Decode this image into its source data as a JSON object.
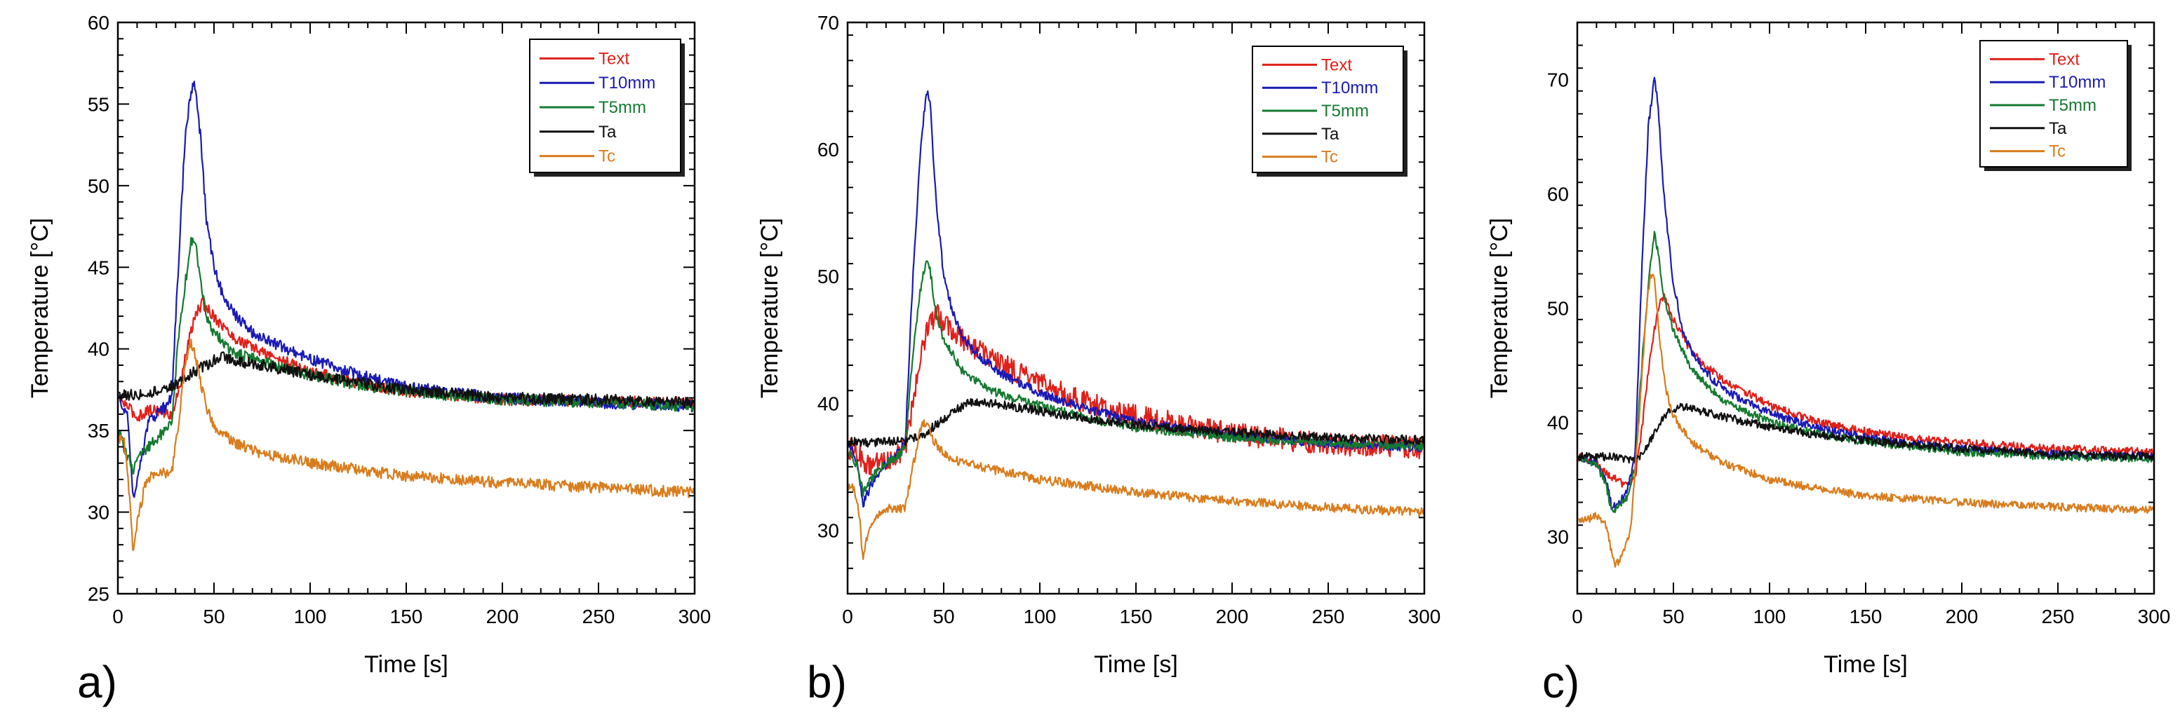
{
  "chart_data": [
    {
      "type": "line",
      "panel_label": "a)",
      "xlabel": "Time [s]",
      "ylabel": "Temperature [°C]",
      "xlim": [
        0,
        300
      ],
      "ylim": [
        25,
        60
      ],
      "xticks": [
        0,
        50,
        100,
        150,
        200,
        250,
        300
      ],
      "yticks": [
        25,
        30,
        35,
        40,
        45,
        50,
        55,
        60
      ],
      "grid": false,
      "legend": "top-right",
      "series": [
        {
          "name": "Text",
          "color": "#e0201a",
          "x": [
            0,
            5,
            10,
            15,
            20,
            25,
            28,
            32,
            36,
            40,
            44,
            50,
            60,
            75,
            100,
            125,
            150,
            200,
            250,
            300
          ],
          "y": [
            37,
            36.5,
            35.8,
            36.2,
            36.3,
            36,
            36,
            37.5,
            40,
            42,
            42.8,
            42,
            40.7,
            39.8,
            38.6,
            37.9,
            37.4,
            36.9,
            36.8,
            36.7
          ]
        },
        {
          "name": "T10mm",
          "color": "#1a1ab4",
          "x": [
            0,
            5,
            8,
            12,
            16,
            20,
            25,
            28,
            31,
            35,
            38,
            40,
            43,
            46,
            50,
            55,
            60,
            70,
            80,
            100,
            125,
            150,
            175,
            200,
            250,
            300
          ],
          "y": [
            37,
            36,
            31,
            33,
            35.5,
            36,
            36.5,
            37,
            44,
            53,
            55.8,
            56.2,
            53,
            48,
            45,
            43.2,
            42.2,
            41,
            40.4,
            39.4,
            38.4,
            37.7,
            37.3,
            37,
            36.7,
            36.5
          ]
        },
        {
          "name": "T5mm",
          "color": "#157a30",
          "x": [
            0,
            5,
            8,
            12,
            16,
            20,
            25,
            28,
            31,
            35,
            38,
            40,
            43,
            46,
            50,
            60,
            75,
            100,
            125,
            150,
            200,
            250,
            300
          ],
          "y": [
            35,
            33.5,
            32.5,
            33.5,
            34,
            34.5,
            35,
            35.5,
            40,
            44,
            46.5,
            46.8,
            44,
            42,
            41,
            39.8,
            39.2,
            38.4,
            37.8,
            37.4,
            36.9,
            36.7,
            36.5
          ]
        },
        {
          "name": "Ta",
          "color": "#111111",
          "x": [
            0,
            10,
            20,
            30,
            40,
            50,
            55,
            60,
            75,
            100,
            125,
            150,
            200,
            250,
            300
          ],
          "y": [
            37.2,
            37.2,
            37.4,
            37.8,
            38.6,
            39.3,
            39.5,
            39.3,
            39,
            38.4,
            37.9,
            37.5,
            37,
            36.9,
            36.7
          ]
        },
        {
          "name": "Tc",
          "color": "#d87d1e",
          "x": [
            0,
            3,
            6,
            8,
            10,
            14,
            18,
            22,
            26,
            28,
            31,
            35,
            38,
            40,
            43,
            46,
            50,
            60,
            75,
            100,
            125,
            150,
            200,
            250,
            300
          ],
          "y": [
            34.5,
            34.7,
            31,
            27.3,
            29.5,
            31.5,
            32.3,
            32.5,
            32.3,
            32.4,
            35,
            39,
            40.3,
            39.7,
            38,
            36.5,
            35.3,
            34.3,
            33.6,
            33,
            32.6,
            32.2,
            31.8,
            31.5,
            31.2
          ]
        }
      ]
    },
    {
      "type": "line",
      "panel_label": "b)",
      "xlabel": "Time [s]",
      "ylabel": "Temperature [°C]",
      "xlim": [
        0,
        300
      ],
      "ylim": [
        25,
        70
      ],
      "xticks": [
        0,
        50,
        100,
        150,
        200,
        250,
        300
      ],
      "yticks": [
        30,
        40,
        50,
        60,
        70
      ],
      "grid": false,
      "legend": "top-right",
      "series": [
        {
          "name": "Text",
          "color": "#e0201a",
          "x": [
            0,
            5,
            10,
            15,
            20,
            25,
            30,
            34,
            38,
            42,
            46,
            50,
            60,
            75,
            100,
            125,
            150,
            175,
            200,
            250,
            300
          ],
          "y": [
            36.5,
            36.2,
            35,
            35.3,
            35.5,
            35.8,
            36.5,
            40,
            44,
            46,
            47,
            46.5,
            45,
            43.5,
            41.5,
            40,
            39,
            38.3,
            37.6,
            36.8,
            36.5
          ]
        },
        {
          "name": "T10mm",
          "color": "#1a1ab4",
          "x": [
            0,
            5,
            8,
            12,
            16,
            20,
            25,
            30,
            34,
            38,
            41,
            43,
            46,
            50,
            55,
            60,
            70,
            80,
            100,
            125,
            150,
            175,
            200,
            250,
            300
          ],
          "y": [
            37,
            35.5,
            32,
            33.5,
            34.5,
            35.2,
            35.8,
            37,
            50,
            60,
            64.8,
            63.5,
            56,
            50,
            47,
            45.2,
            43.5,
            42.3,
            40.8,
            39.5,
            38.6,
            38,
            37.5,
            36.8,
            36.5
          ]
        },
        {
          "name": "T5mm",
          "color": "#157a30",
          "x": [
            0,
            5,
            8,
            12,
            16,
            20,
            25,
            30,
            34,
            38,
            41,
            43,
            46,
            50,
            60,
            75,
            100,
            125,
            150,
            200,
            250,
            300
          ],
          "y": [
            36.5,
            35,
            33,
            34,
            34.8,
            35.3,
            35.7,
            36.5,
            44,
            49,
            51.5,
            50.5,
            47,
            45,
            42.5,
            41,
            39.8,
            38.8,
            38.1,
            37.3,
            36.9,
            36.6
          ]
        },
        {
          "name": "Ta",
          "color": "#111111",
          "x": [
            0,
            10,
            20,
            30,
            40,
            50,
            60,
            65,
            75,
            100,
            125,
            150,
            200,
            250,
            300
          ],
          "y": [
            37,
            36.9,
            37,
            37,
            37.6,
            38.8,
            39.8,
            40.1,
            40,
            39.4,
            38.8,
            38.3,
            37.7,
            37.3,
            37.1
          ]
        },
        {
          "name": "Tc",
          "color": "#d87d1e",
          "x": [
            0,
            3,
            6,
            8,
            10,
            14,
            18,
            22,
            26,
            30,
            34,
            38,
            40,
            42,
            45,
            50,
            60,
            75,
            100,
            125,
            150,
            200,
            250,
            300
          ],
          "y": [
            33.5,
            33.3,
            31.5,
            27.5,
            29.5,
            31,
            31.5,
            31.8,
            31.6,
            31.8,
            35,
            38,
            38.5,
            38.2,
            37,
            36,
            35.3,
            34.8,
            34,
            33.5,
            33,
            32.3,
            31.8,
            31.4
          ]
        }
      ]
    },
    {
      "type": "line",
      "panel_label": "c)",
      "xlabel": "Time [s]",
      "ylabel": "Temperature [°C]",
      "xlim": [
        0,
        300
      ],
      "ylim": [
        25,
        75
      ],
      "xticks": [
        0,
        50,
        100,
        150,
        200,
        250,
        300
      ],
      "yticks": [
        30,
        40,
        50,
        60,
        70
      ],
      "grid": false,
      "legend": "top-right",
      "series": [
        {
          "name": "Text",
          "color": "#e0201a",
          "x": [
            0,
            5,
            10,
            15,
            20,
            25,
            30,
            34,
            38,
            42,
            45,
            50,
            60,
            75,
            100,
            125,
            150,
            175,
            200,
            250,
            300
          ],
          "y": [
            37,
            36.8,
            36.5,
            35.5,
            35,
            34.5,
            35,
            40,
            46,
            50,
            51,
            49,
            46,
            43.8,
            41.5,
            40,
            39.2,
            38.6,
            38.2,
            37.7,
            37.4
          ]
        },
        {
          "name": "T10mm",
          "color": "#1a1ab4",
          "x": [
            0,
            5,
            10,
            15,
            18,
            22,
            26,
            30,
            34,
            37,
            40,
            42,
            45,
            50,
            55,
            60,
            70,
            80,
            100,
            125,
            150,
            175,
            200,
            250,
            300
          ],
          "y": [
            37,
            36.8,
            36.5,
            35,
            32.5,
            33,
            34,
            37,
            55,
            66,
            70,
            68,
            60,
            52,
            48,
            46,
            43.8,
            42.5,
            40.8,
            39.5,
            38.7,
            38.1,
            37.7,
            37.2,
            37
          ]
        },
        {
          "name": "T5mm",
          "color": "#157a30",
          "x": [
            0,
            5,
            10,
            15,
            18,
            22,
            26,
            30,
            34,
            38,
            40,
            42,
            45,
            50,
            60,
            75,
            100,
            125,
            150,
            200,
            250,
            300
          ],
          "y": [
            36.8,
            36.6,
            36.3,
            34.5,
            32.2,
            32.8,
            33.5,
            36,
            46,
            54,
            56.5,
            55,
            51,
            48,
            44.5,
            42,
            40,
            39,
            38.3,
            37.4,
            37,
            36.8
          ]
        },
        {
          "name": "Ta",
          "color": "#111111",
          "x": [
            0,
            10,
            20,
            30,
            35,
            40,
            45,
            50,
            55,
            60,
            75,
            100,
            125,
            150,
            200,
            250,
            300
          ],
          "y": [
            37,
            37,
            37,
            36.6,
            37.5,
            39,
            40.5,
            41.2,
            41.4,
            41.2,
            40.5,
            39.6,
            38.9,
            38.4,
            37.7,
            37.2,
            37
          ]
        },
        {
          "name": "Tc",
          "color": "#d87d1e",
          "x": [
            0,
            5,
            10,
            15,
            18,
            20,
            24,
            28,
            32,
            36,
            38,
            40,
            43,
            46,
            50,
            60,
            75,
            100,
            125,
            150,
            200,
            250,
            300
          ],
          "y": [
            31.6,
            31.5,
            31.8,
            31,
            28.5,
            27.5,
            28.5,
            31,
            40,
            50,
            53,
            52.5,
            47,
            43,
            40.5,
            38.2,
            36.5,
            35,
            34.2,
            33.6,
            33,
            32.6,
            32.3
          ]
        }
      ]
    }
  ]
}
